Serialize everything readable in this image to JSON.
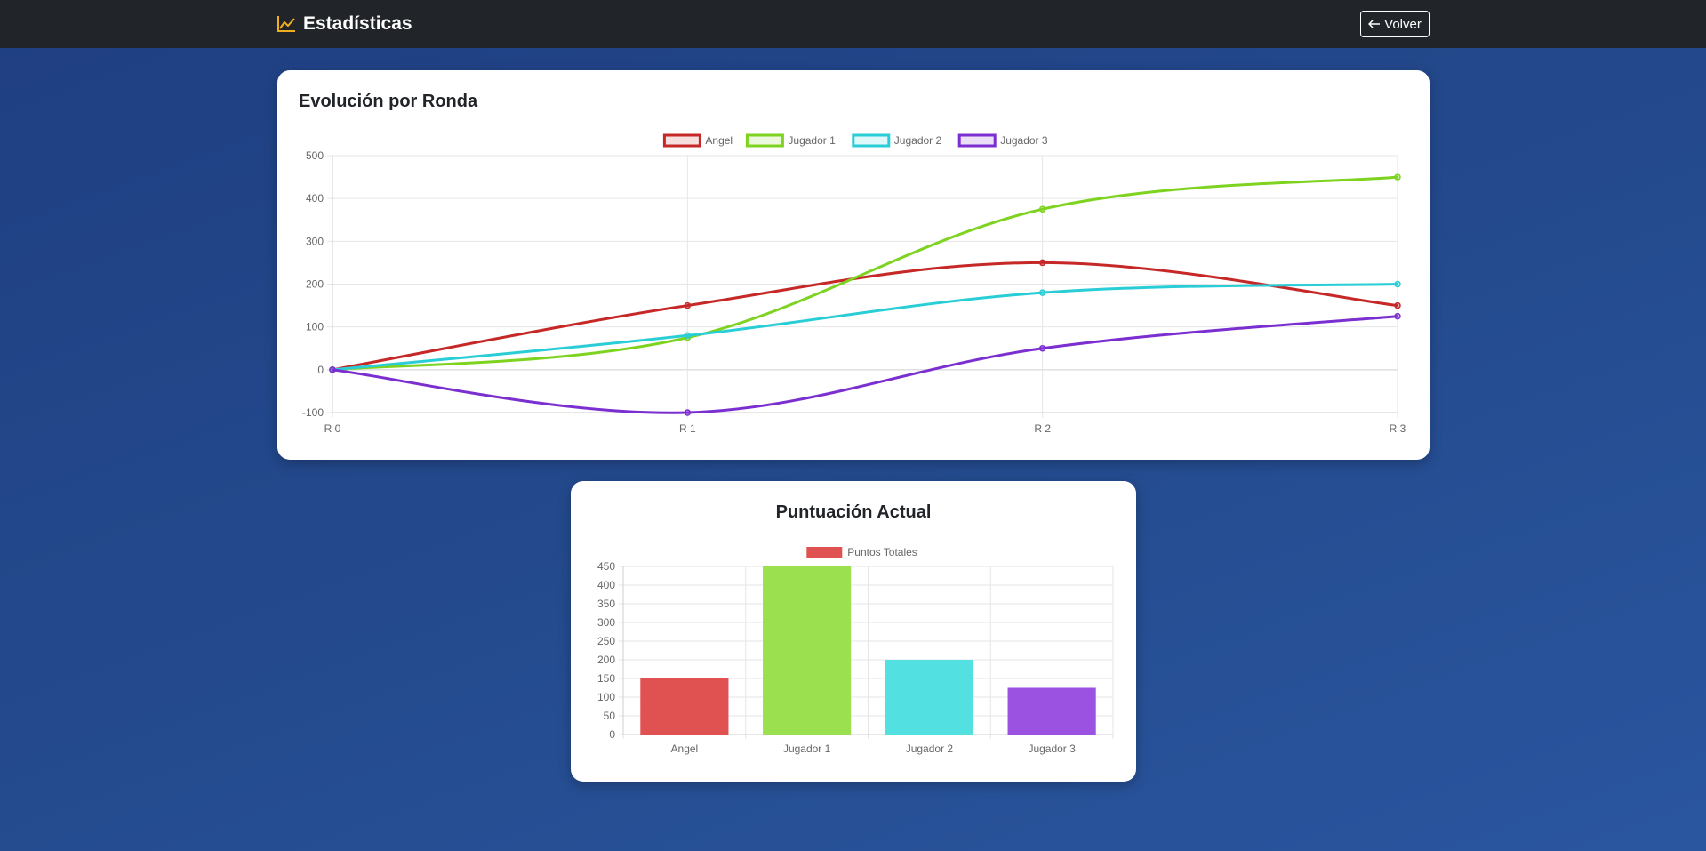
{
  "navbar": {
    "title": "Estadísticas",
    "title_icon": "chart-line-icon",
    "back_icon": "arrow-left-icon",
    "back_label": "Volver",
    "accent_color": "#f0ad1f"
  },
  "line_card": {
    "title": "Evolución por Ronda"
  },
  "bar_card": {
    "title": "Puntuación Actual"
  },
  "chart_data": [
    {
      "type": "line",
      "title": "Evolución por Ronda",
      "categories": [
        "R 0",
        "R 1",
        "R 2",
        "R 3"
      ],
      "ylim": [
        -100,
        500
      ],
      "yticks": [
        -100,
        0,
        100,
        200,
        300,
        400,
        500
      ],
      "grid": true,
      "legend": "top-center",
      "series": [
        {
          "name": "Angel",
          "values": [
            0,
            150,
            250,
            150
          ],
          "color": "#c62828"
        },
        {
          "name": "Jugador 1",
          "values": [
            0,
            75,
            375,
            450
          ],
          "color": "#7ed321"
        },
        {
          "name": "Jugador 2",
          "values": [
            0,
            80,
            180,
            200
          ],
          "color": "#29cdd6"
        },
        {
          "name": "Jugador 3",
          "values": [
            0,
            -100,
            50,
            125
          ],
          "color": "#7b2fd1"
        }
      ]
    },
    {
      "type": "bar",
      "title": "Puntuación Actual",
      "categories": [
        "Angel",
        "Jugador 1",
        "Jugador 2",
        "Jugador 3"
      ],
      "ylim": [
        0,
        450
      ],
      "yticks": [
        0,
        50,
        100,
        150,
        200,
        250,
        300,
        350,
        400,
        450
      ],
      "grid": true,
      "legend": "top-center",
      "series": [
        {
          "name": "Puntos Totales",
          "values": [
            150,
            450,
            200,
            125
          ]
        }
      ],
      "bar_colors": [
        "#e05252",
        "#9be04f",
        "#52e0e0",
        "#9b52e0"
      ],
      "legend_color": "#e05252"
    }
  ]
}
